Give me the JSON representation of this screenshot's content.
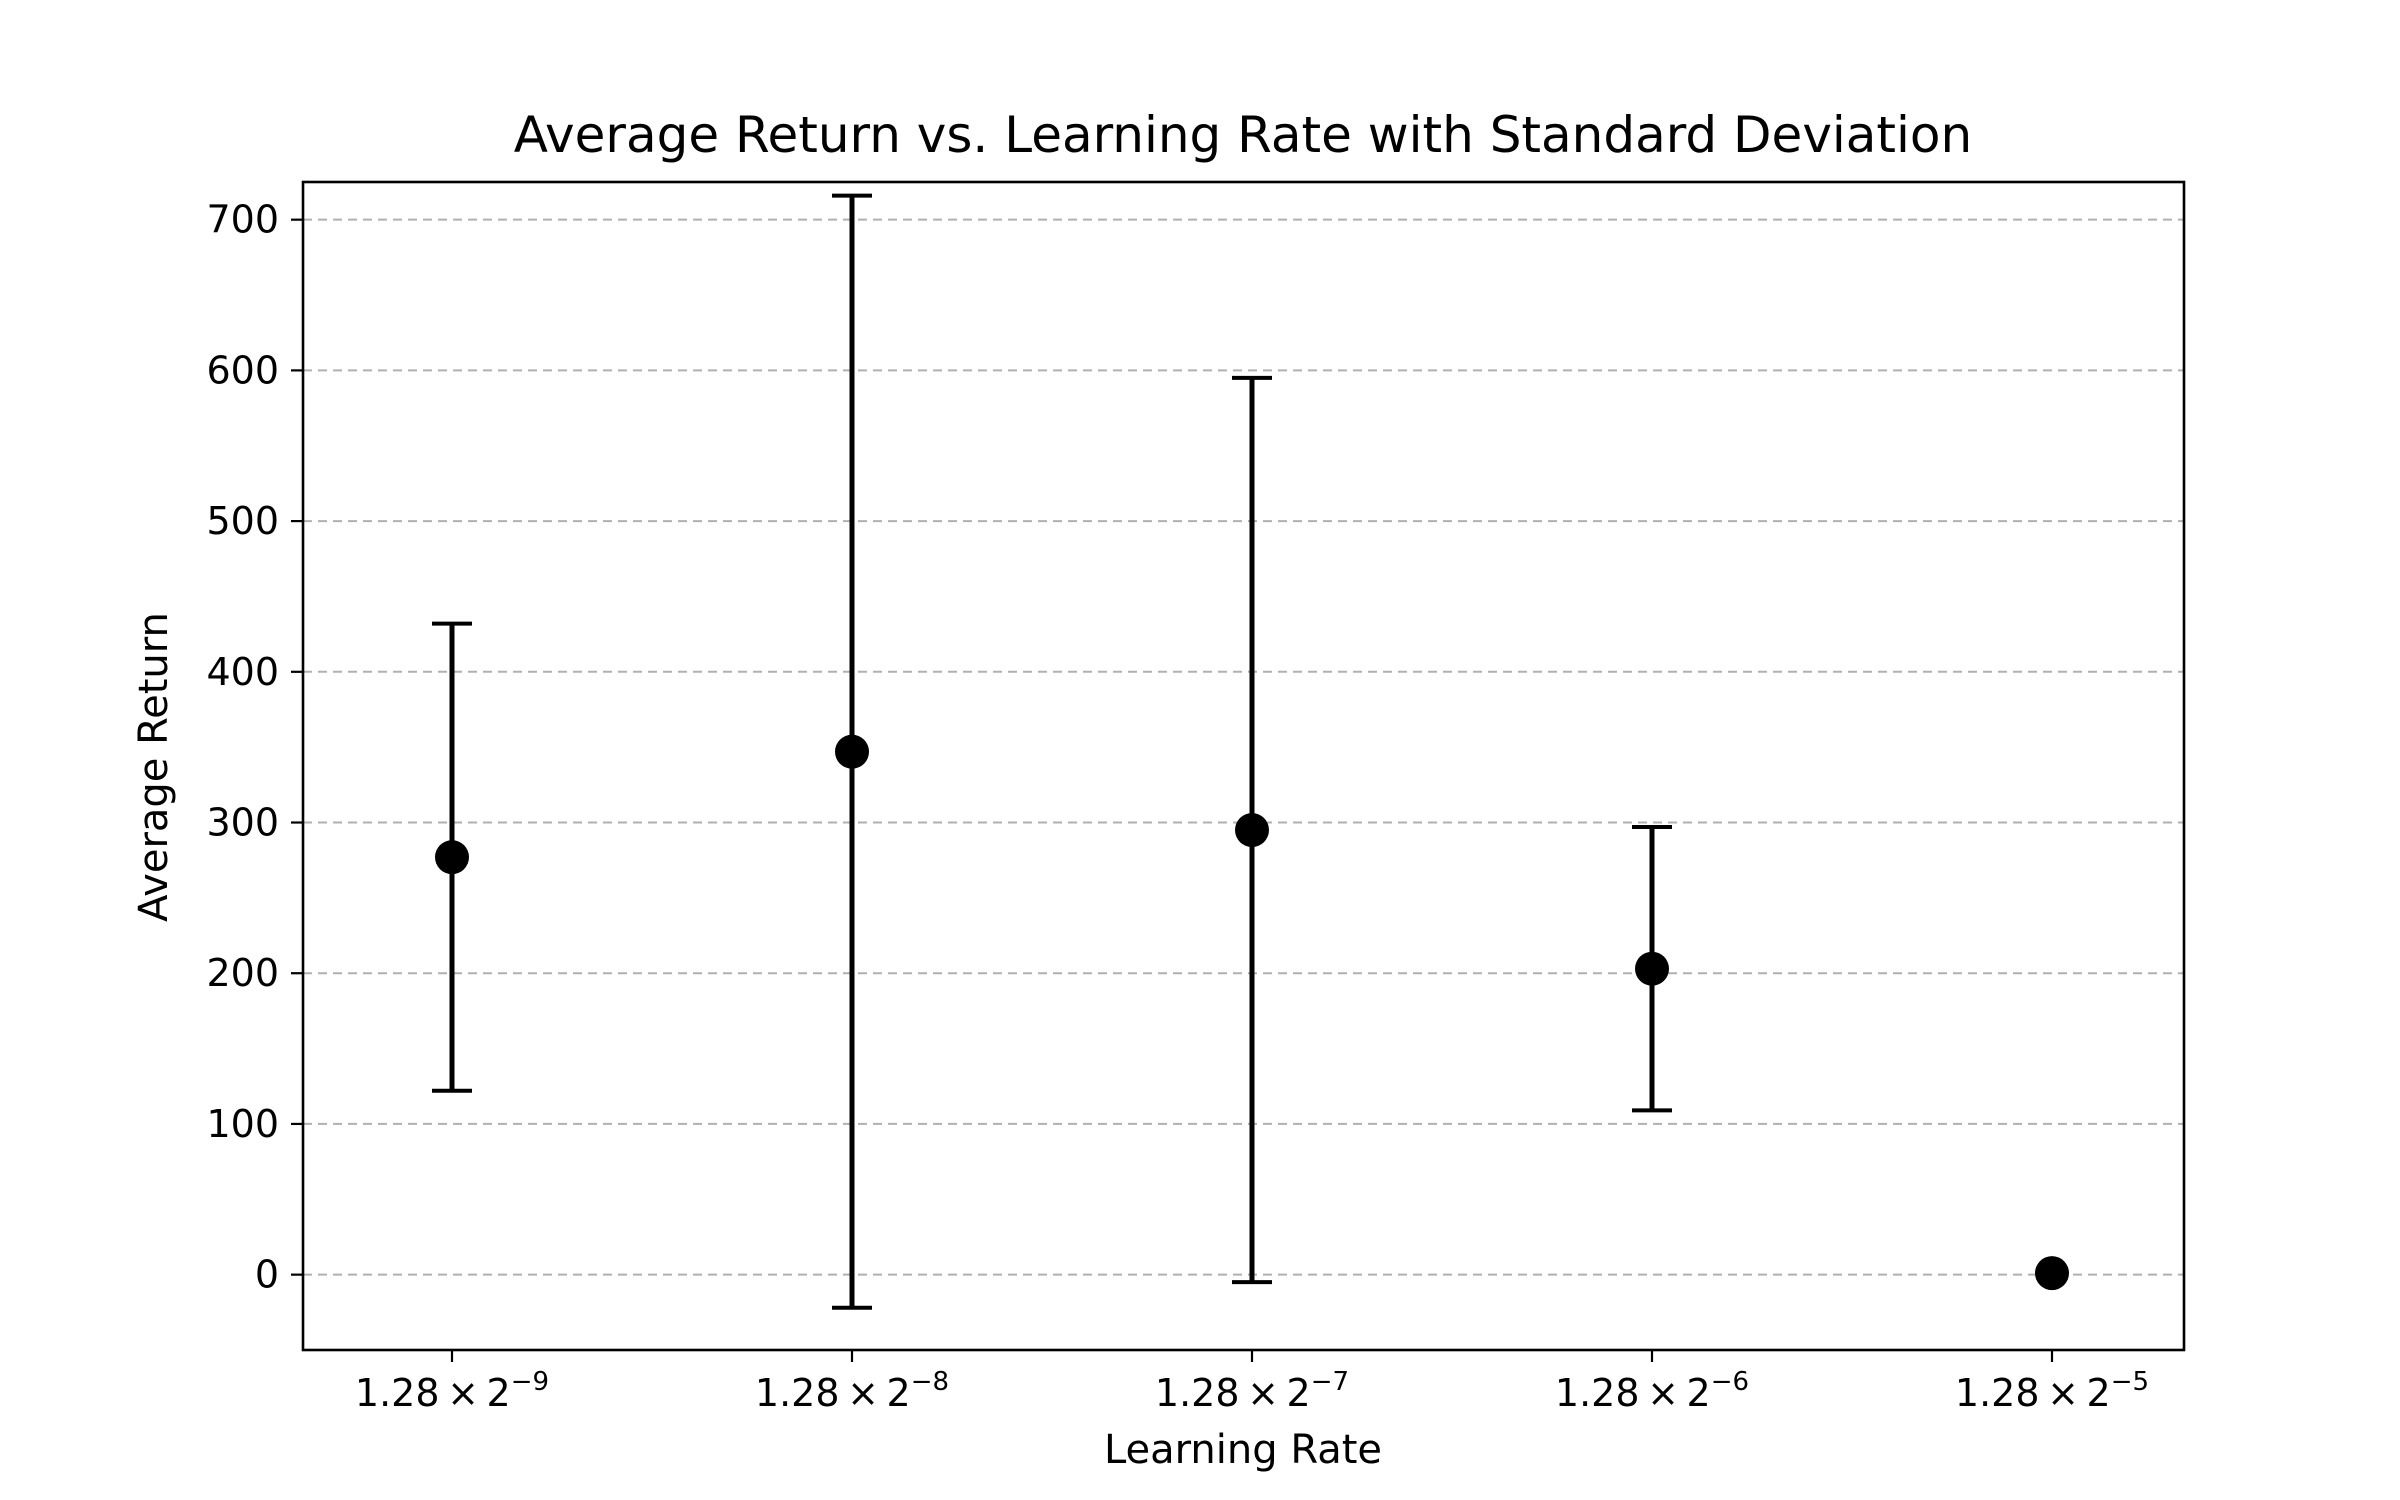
{
  "chart_data": {
    "type": "scatter",
    "title": "Average Return vs. Learning Rate with Standard Deviation",
    "xlabel": "Learning Rate",
    "ylabel": "Average Return",
    "x_categories": [
      {
        "base": "1.28 × 2",
        "exp": "−9"
      },
      {
        "base": "1.28 × 2",
        "exp": "−8"
      },
      {
        "base": "1.28 × 2",
        "exp": "−7"
      },
      {
        "base": "1.28 × 2",
        "exp": "−6"
      },
      {
        "base": "1.28 × 2",
        "exp": "−5"
      }
    ],
    "series": [
      {
        "values": [
          277,
          347,
          295,
          203,
          1
        ],
        "std": [
          155,
          369,
          300,
          94,
          0
        ]
      }
    ],
    "ylim": [
      -50,
      725
    ],
    "yticks": [
      0,
      100,
      200,
      300,
      400,
      500,
      600,
      700
    ],
    "grid": "horizontal-dashed",
    "colors": {
      "marker": "#000000",
      "errorbar": "#000000",
      "grid": "#b0b0b0",
      "frame": "#000000"
    }
  }
}
